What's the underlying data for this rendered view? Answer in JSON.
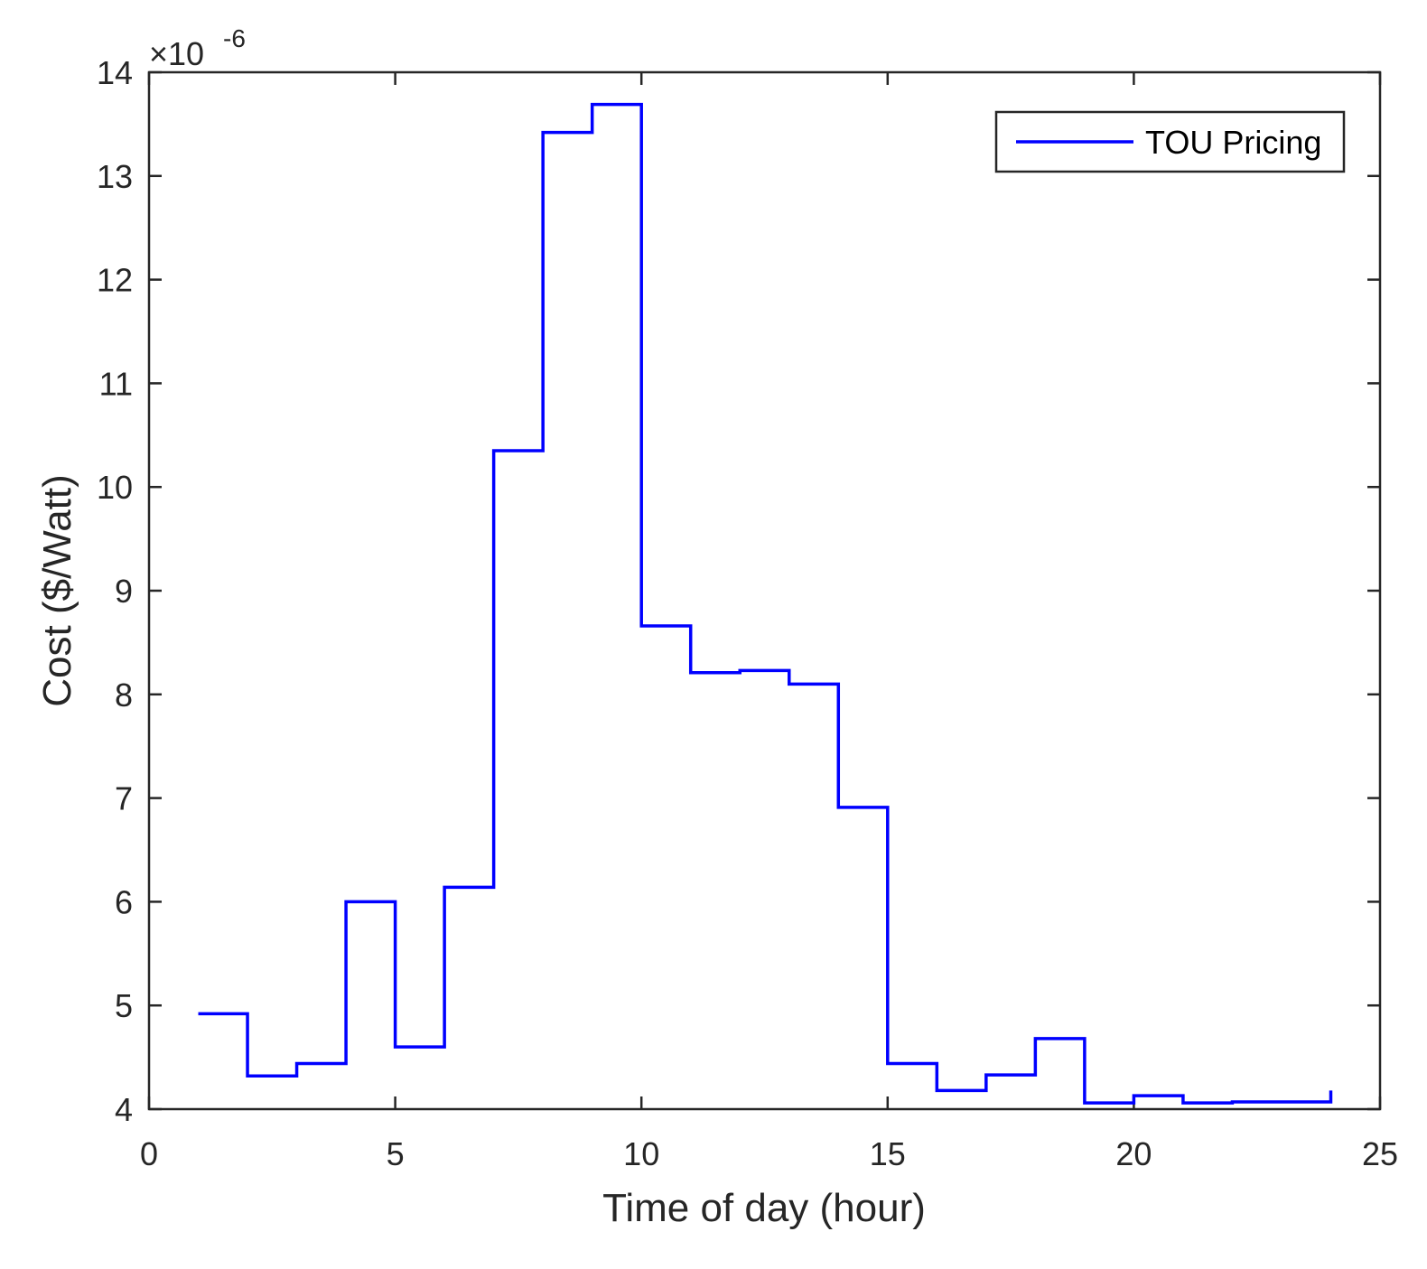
{
  "chart_data": {
    "type": "line",
    "step": true,
    "xlabel": "Time of day (hour)",
    "ylabel": "Cost ($/Watt)",
    "y_exponent_label": {
      "prefix": "×10",
      "exponent": "-6"
    },
    "xlim": [
      0,
      25
    ],
    "ylim": [
      4,
      14
    ],
    "x_ticks": [
      0,
      5,
      10,
      15,
      20,
      25
    ],
    "y_ticks": [
      4,
      5,
      6,
      7,
      8,
      9,
      10,
      11,
      12,
      13,
      14
    ],
    "grid": false,
    "legend_position": "top-right",
    "series": [
      {
        "name": "TOU Pricing",
        "color": "#0000ff",
        "x": [
          1,
          2,
          3,
          4,
          5,
          6,
          7,
          8,
          9,
          10,
          11,
          12,
          13,
          14,
          15,
          16,
          17,
          18,
          19,
          20,
          21,
          22,
          23,
          24
        ],
        "values": [
          4.92,
          4.32,
          4.44,
          6.0,
          4.6,
          6.14,
          10.35,
          13.42,
          13.69,
          8.66,
          8.21,
          8.23,
          8.1,
          6.91,
          4.44,
          4.18,
          4.33,
          4.68,
          4.06,
          4.13,
          4.06,
          4.07,
          4.07,
          4.18
        ]
      }
    ]
  }
}
